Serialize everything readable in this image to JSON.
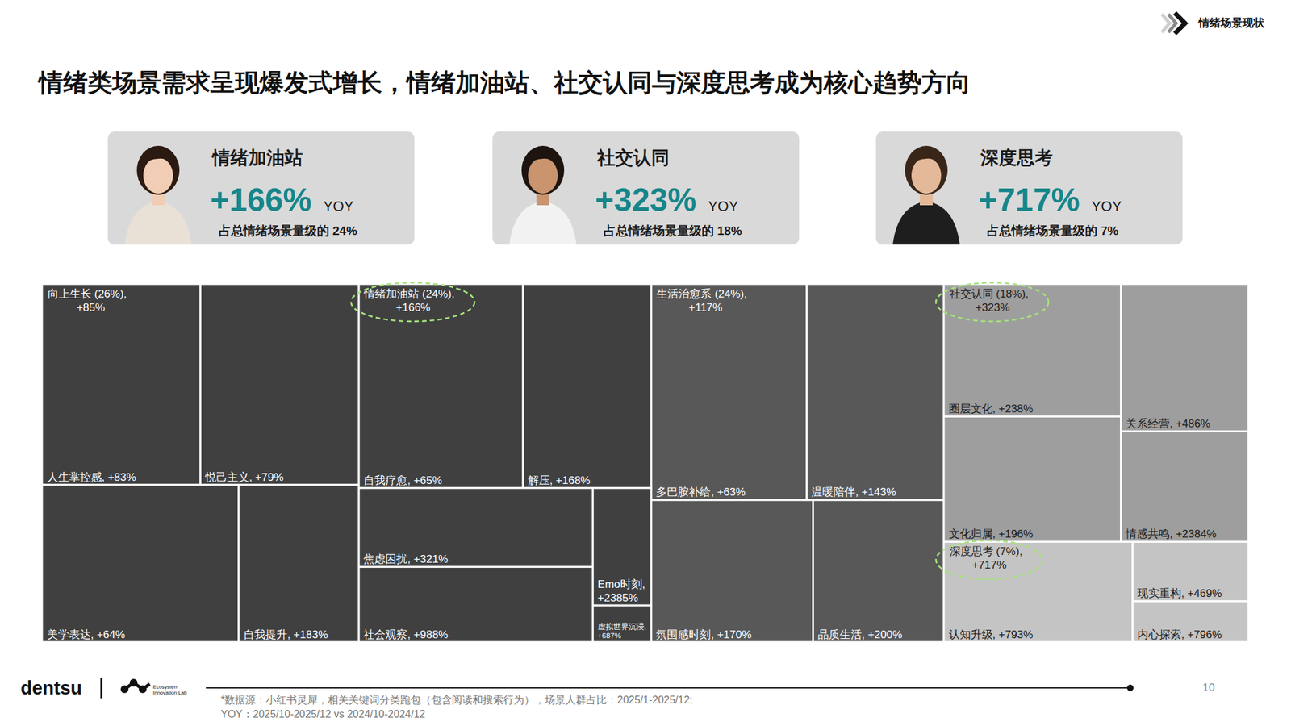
{
  "header": {
    "title": "情绪类场景需求呈现爆发式增长，情绪加油站、社交认同与深度思考成为核心趋势方向",
    "section": "情绪场景现状"
  },
  "cards": [
    {
      "title": "情绪加油站",
      "growth": "+166%",
      "unit": "YOY",
      "note": "占总情绪场景量级的 24%"
    },
    {
      "title": "社交认同",
      "growth": "+323%",
      "unit": "YOY",
      "note": "占总情绪场景量级的 18%"
    },
    {
      "title": "深度思考",
      "growth": "+717%",
      "unit": "YOY",
      "note": "占总情绪场景量级的 7%"
    }
  ],
  "chart_data": {
    "type": "treemap",
    "groups": [
      {
        "label": "向上生长 (26%),",
        "yoy_label": "+85%",
        "value": 26,
        "color": "#404040",
        "children": [
          {
            "label": "人生掌控感, +83%",
            "value": 7.4
          },
          {
            "label": "悦己主义, +79%",
            "value": 7.4
          },
          {
            "label": "美学表达, +64%",
            "value": 7.2
          },
          {
            "label": "自我提升, +183%",
            "value": 4.4
          }
        ]
      },
      {
        "label": "情绪加油站 (24%),",
        "yoy_label": "+166%",
        "value": 24,
        "color": "#404040",
        "children": [
          {
            "label": "自我疗愈, +65%",
            "value": 7.8
          },
          {
            "label": "解压, +168%",
            "value": 6.1
          },
          {
            "label": "焦虑困扰, +321%",
            "value": 4.3
          },
          {
            "label": "社会观察, +988%",
            "value": 4.1
          },
          {
            "label": "Emo时刻, +2385%",
            "value": 1.6
          },
          {
            "label": "虚拟世界沉浸, +687%",
            "value": 0.5
          }
        ]
      },
      {
        "label": "生活治愈系 (24%),",
        "yoy_label": "+117%",
        "value": 24,
        "color": "#585858",
        "children": [
          {
            "label": "多巴胺补给, +63%",
            "value": 7.6
          },
          {
            "label": "温暖陪伴, +143%",
            "value": 6.7
          },
          {
            "label": "氛围感时刻, +170%",
            "value": 5.2
          },
          {
            "label": "品质生活, +200%",
            "value": 4.2
          }
        ]
      },
      {
        "label": "社交认同 (18%),",
        "yoy_label": "+323%",
        "value": 18,
        "color": "#9e9e9e",
        "children": [
          {
            "label": "圈层文化, +238%",
            "value": 5.5
          },
          {
            "label": "文化归属, +196%",
            "value": 5.2
          },
          {
            "label": "关系经营, +486%",
            "value": 4.4
          },
          {
            "label": "情感共鸣, +2384%",
            "value": 3.3
          }
        ]
      },
      {
        "label": "深度思考 (7%),",
        "yoy_label": "+717%",
        "value": 7,
        "color": "#c4c4c4",
        "children": [
          {
            "label": "认知升级, +793%",
            "value": 4.4
          },
          {
            "label": "现实重构, +469%",
            "value": 1.6
          },
          {
            "label": "内心探索, +796%",
            "value": 1.1
          }
        ]
      }
    ]
  },
  "footer": {
    "brand": "dentsu",
    "lab": [
      "Ecosystem",
      "Innovation Lab"
    ],
    "page": "10",
    "notes": [
      "*数据源：小红书灵犀，相关关键词分类跑包（包含阅读和搜索行为），场景人群占比：2025/1-2025/12;",
      "YOY：2025/10-2025/12 vs 2024/10-2024/12"
    ]
  }
}
